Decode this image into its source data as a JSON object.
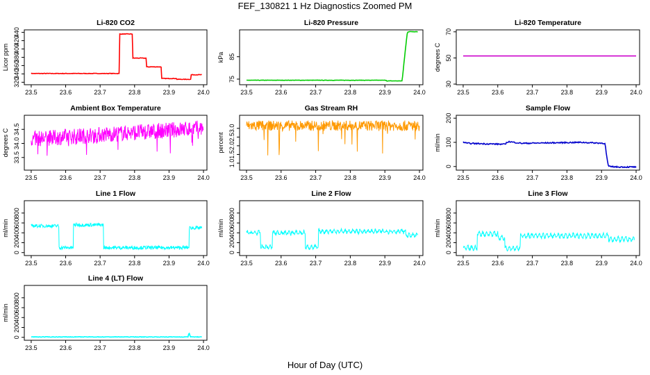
{
  "page": {
    "title": "FEF_130821  1 Hz Diagnostics Zoomed PM",
    "x_axis_title": "Hour of Day (UTC)"
  },
  "chart_data": [
    {
      "type": "line",
      "title": "Li-820 CO2",
      "ylabel": "Licor ppm",
      "xlim": [
        23.48,
        24.01
      ],
      "ylim": [
        314,
        446
      ],
      "x_ticks": [
        "23.5",
        "23.6",
        "23.7",
        "23.8",
        "23.9",
        "24.0"
      ],
      "y_ticks": [
        "320",
        "340",
        "360",
        "380",
        "400",
        "420",
        "440"
      ],
      "color": "#ff0000",
      "noise": 0.6,
      "series": [
        {
          "x": [
            23.5,
            23.757,
            23.757,
            23.795,
            23.795,
            23.834,
            23.834,
            23.878,
            23.878,
            23.922,
            23.922,
            23.963,
            23.963,
            23.995
          ],
          "y": [
            341,
            341,
            436,
            436,
            378,
            378,
            357,
            357,
            329,
            329,
            327,
            327,
            338,
            338
          ]
        }
      ]
    },
    {
      "type": "line",
      "title": "Li-820 Pressure",
      "ylabel": "kPa",
      "xlim": [
        23.48,
        24.01
      ],
      "ylim": [
        72.5,
        97
      ],
      "x_ticks": [
        "23.5",
        "23.6",
        "23.7",
        "23.8",
        "23.9",
        "24.0"
      ],
      "y_ticks": [
        "75",
        "85"
      ],
      "color": "#00cc00",
      "noise": 0.08,
      "series": [
        {
          "x": [
            23.5,
            23.905,
            23.905,
            23.95,
            23.955,
            23.962,
            23.965,
            23.97,
            23.995
          ],
          "y": [
            74.5,
            74.5,
            74.2,
            74.2,
            82,
            92,
            96,
            96.2,
            96.2
          ]
        }
      ]
    },
    {
      "type": "line",
      "title": "Li-820 Temperature",
      "ylabel": "degrees C",
      "xlim": [
        23.48,
        24.01
      ],
      "ylim": [
        29.5,
        71.5
      ],
      "x_ticks": [
        "23.5",
        "23.6",
        "23.7",
        "23.8",
        "23.9",
        "24.0"
      ],
      "y_ticks": [
        "30",
        "50",
        "70"
      ],
      "color": "#cc00cc",
      "noise": 0,
      "series": [
        {
          "x": [
            23.5,
            24.0
          ],
          "y": [
            51.5,
            51.5
          ]
        }
      ]
    },
    {
      "type": "line",
      "title": "Ambient Box Temperature",
      "ylabel": "degrees C",
      "xlim": [
        23.48,
        24.01
      ],
      "ylim": [
        33.05,
        35.0
      ],
      "x_ticks": [
        "23.5",
        "23.6",
        "23.7",
        "23.8",
        "23.9",
        "24.0"
      ],
      "y_ticks": [
        "33.5",
        "34.0",
        "34.5"
      ],
      "color": "#ff00ff",
      "noise": 0.28,
      "dense": true,
      "spikes": 0.6,
      "series": [
        {
          "x": [
            23.5,
            24.0
          ],
          "y": [
            34.15,
            34.55
          ]
        }
      ]
    },
    {
      "type": "line",
      "title": "Gas Stream RH",
      "ylabel": "percent",
      "xlim": [
        23.48,
        24.01
      ],
      "ylim": [
        0.6,
        3.75
      ],
      "x_ticks": [
        "23.5",
        "23.6",
        "23.7",
        "23.8",
        "23.9",
        "24.0"
      ],
      "y_ticks": [
        "1.0",
        "1.5",
        "2.0",
        "2.5",
        "3.0"
      ],
      "color": "#ff9900",
      "noise": 0.3,
      "dense": true,
      "spikes": 1.9,
      "series": [
        {
          "x": [
            23.5,
            24.0
          ],
          "y": [
            3.15,
            3.15
          ]
        }
      ]
    },
    {
      "type": "line",
      "title": "Sample Flow",
      "ylabel": "ml/min",
      "xlim": [
        23.48,
        24.01
      ],
      "ylim": [
        -15,
        212
      ],
      "x_ticks": [
        "23.5",
        "23.6",
        "23.7",
        "23.8",
        "23.9",
        "24.0"
      ],
      "y_ticks": [
        "0",
        "100",
        "200"
      ],
      "color": "#0000cc",
      "noise": 2.5,
      "series": [
        {
          "x": [
            23.5,
            23.51,
            23.62,
            23.63,
            23.67,
            23.84,
            23.91,
            23.915,
            23.92,
            23.95,
            24.0
          ],
          "y": [
            102,
            96,
            92,
            103,
            96,
            100,
            96,
            40,
            0,
            -2,
            -2
          ]
        }
      ]
    },
    {
      "type": "line",
      "title": "Line 1 Flow",
      "ylabel": "ml/min",
      "xlim": [
        23.48,
        24.01
      ],
      "ylim": [
        -60,
        1050
      ],
      "x_ticks": [
        "23.5",
        "23.6",
        "23.7",
        "23.8",
        "23.9",
        "24.0"
      ],
      "y_ticks": [
        "0",
        "200",
        "400",
        "600",
        "800"
      ],
      "color": "#00ffff",
      "noise": 35,
      "dense": true,
      "series": [
        {
          "x": [
            23.5,
            23.58,
            23.58,
            23.622,
            23.622,
            23.71,
            23.71,
            23.958,
            23.958,
            23.995
          ],
          "y": [
            540,
            540,
            100,
            100,
            560,
            560,
            100,
            100,
            500,
            500
          ]
        }
      ]
    },
    {
      "type": "line",
      "title": "Line 2 Flow",
      "ylabel": "ml/min",
      "xlim": [
        23.48,
        24.01
      ],
      "ylim": [
        -60,
        1050
      ],
      "x_ticks": [
        "23.5",
        "23.6",
        "23.7",
        "23.8",
        "23.9",
        "24.0"
      ],
      "y_ticks": [
        "0",
        "200",
        "400",
        "600",
        "800"
      ],
      "color": "#00ffff",
      "noise": 28,
      "dense": true,
      "osc": 30,
      "series": [
        {
          "x": [
            23.5,
            23.54,
            23.54,
            23.575,
            23.575,
            23.67,
            23.67,
            23.708,
            23.708,
            23.96,
            23.96,
            23.995
          ],
          "y": [
            400,
            400,
            110,
            110,
            400,
            400,
            110,
            110,
            430,
            430,
            350,
            350
          ]
        }
      ]
    },
    {
      "type": "line",
      "title": "Line 3 Flow",
      "ylabel": "ml/min",
      "xlim": [
        23.48,
        24.01
      ],
      "ylim": [
        -60,
        1050
      ],
      "x_ticks": [
        "23.5",
        "23.6",
        "23.7",
        "23.8",
        "23.9",
        "24.0"
      ],
      "y_ticks": [
        "0",
        "200",
        "400",
        "600",
        "800"
      ],
      "color": "#00ffff",
      "noise": 25,
      "dense": true,
      "osc": 40,
      "series": [
        {
          "x": [
            23.5,
            23.54,
            23.54,
            23.6,
            23.6,
            23.62,
            23.62,
            23.665,
            23.665,
            23.92,
            23.92,
            23.995
          ],
          "y": [
            90,
            90,
            380,
            380,
            300,
            300,
            90,
            90,
            340,
            340,
            270,
            270
          ]
        }
      ]
    },
    {
      "type": "line",
      "title": "Line 4 (LT) Flow",
      "ylabel": "ml/min",
      "xlim": [
        23.48,
        24.01
      ],
      "ylim": [
        -60,
        1050
      ],
      "x_ticks": [
        "23.5",
        "23.6",
        "23.7",
        "23.8",
        "23.9",
        "24.0"
      ],
      "y_ticks": [
        "0",
        "200",
        "400",
        "600",
        "800"
      ],
      "color": "#00ffff",
      "noise": 5,
      "series": [
        {
          "x": [
            23.5,
            23.955,
            23.958,
            23.962,
            23.995
          ],
          "y": [
            8,
            8,
            100,
            8,
            8
          ]
        }
      ]
    }
  ]
}
